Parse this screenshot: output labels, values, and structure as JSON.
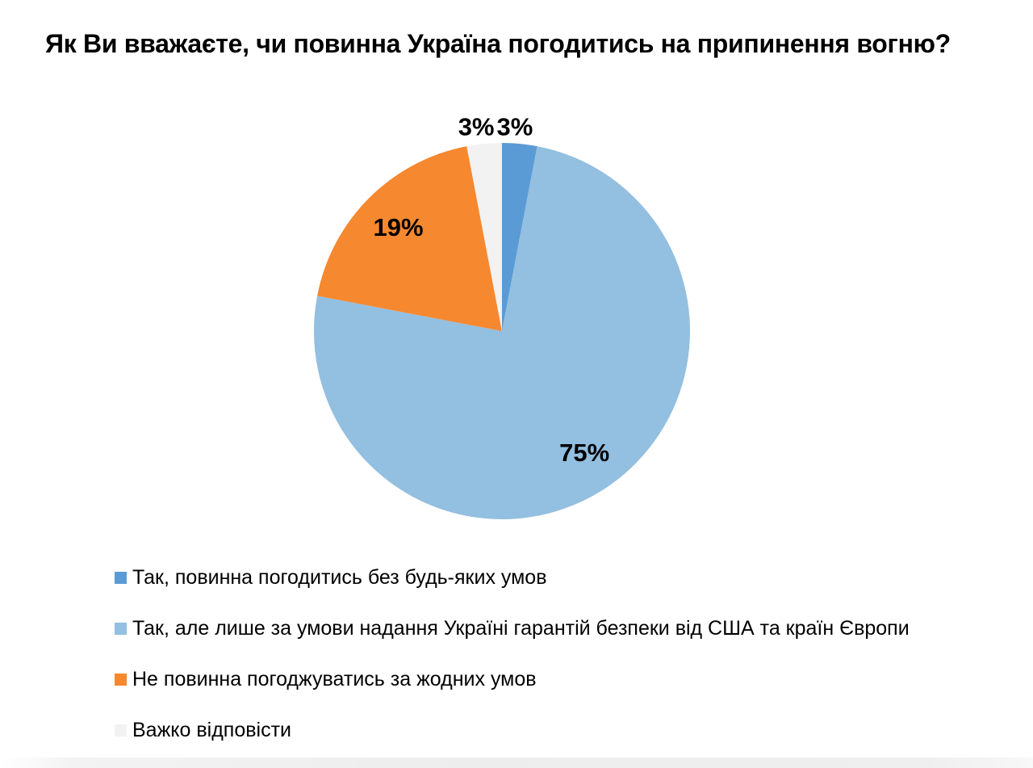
{
  "title": "Як Ви вважаєте, чи повинна Україна погодитись на припинення вогню?",
  "chart_data": {
    "type": "pie",
    "title": "Як Ви вважаєте, чи повинна Україна погодитись на припинення вогню?",
    "direction": "clockwise",
    "start_angle_deg": 0,
    "legend_position": "bottom-left",
    "slices": [
      {
        "label": "Так, повинна погодитись без будь-яких умов",
        "value": 3,
        "pct_label": "3%",
        "color": "#5B9BD5"
      },
      {
        "label": "Так, але лише за умови надання Україні гарантій безпеки від США та країн Європи",
        "value": 75,
        "pct_label": "75%",
        "color": "#93BFE0"
      },
      {
        "label": "Не повинна погоджуватись за жодних умов",
        "value": 19,
        "pct_label": "19%",
        "color": "#F6882F"
      },
      {
        "label": "Важко відповісти",
        "value": 3,
        "pct_label": "3%",
        "color": "#F2F2F2"
      }
    ]
  }
}
